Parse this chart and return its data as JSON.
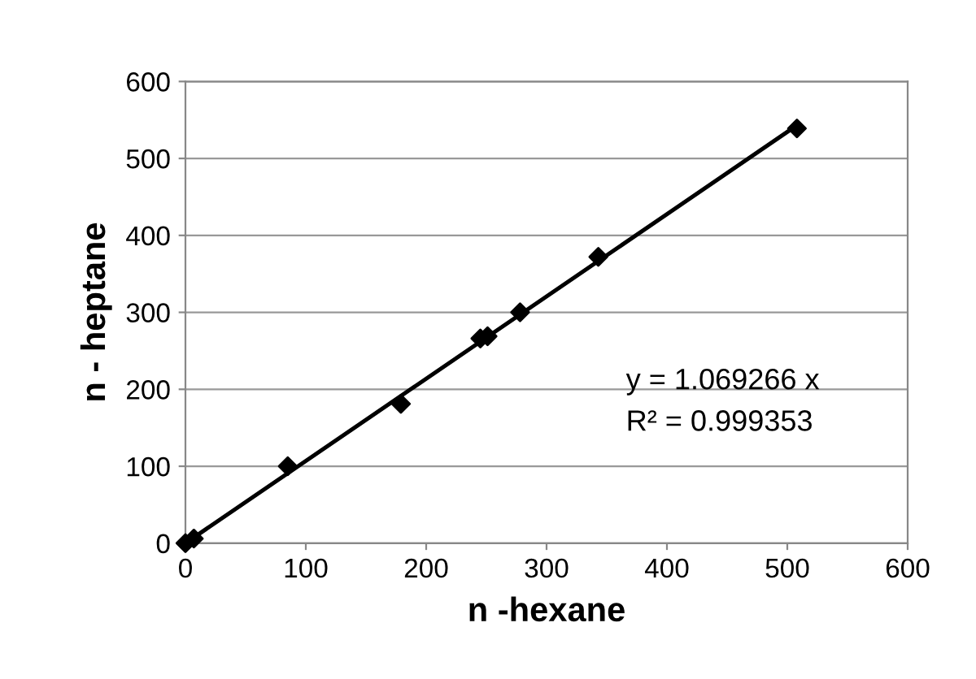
{
  "chart_data": {
    "type": "scatter",
    "xlabel": "n -hexane",
    "ylabel": "n - heptane",
    "series": [
      {
        "color": "#000000",
        "marker": "diamond",
        "x": [
          0,
          7,
          85,
          179,
          245,
          251,
          278,
          343,
          508
        ],
        "values": [
          0,
          6,
          100,
          181,
          266,
          269,
          300,
          372,
          539
        ]
      },
      {
        "type": "line",
        "color": "#000000",
        "marker": "none",
        "line_style": "solid",
        "x": [
          0,
          508
        ],
        "values": [
          0,
          543
        ]
      }
    ],
    "annotations": [
      "y = 1.069266 x",
      "R² = 0.999353"
    ],
    "xlim": [
      0,
      600
    ],
    "ylim": [
      0,
      600
    ],
    "xticks": [
      0,
      100,
      200,
      300,
      400,
      500,
      600
    ],
    "yticks": [
      0,
      100,
      200,
      300,
      400,
      500,
      600
    ],
    "grid": "y",
    "legend": false
  }
}
